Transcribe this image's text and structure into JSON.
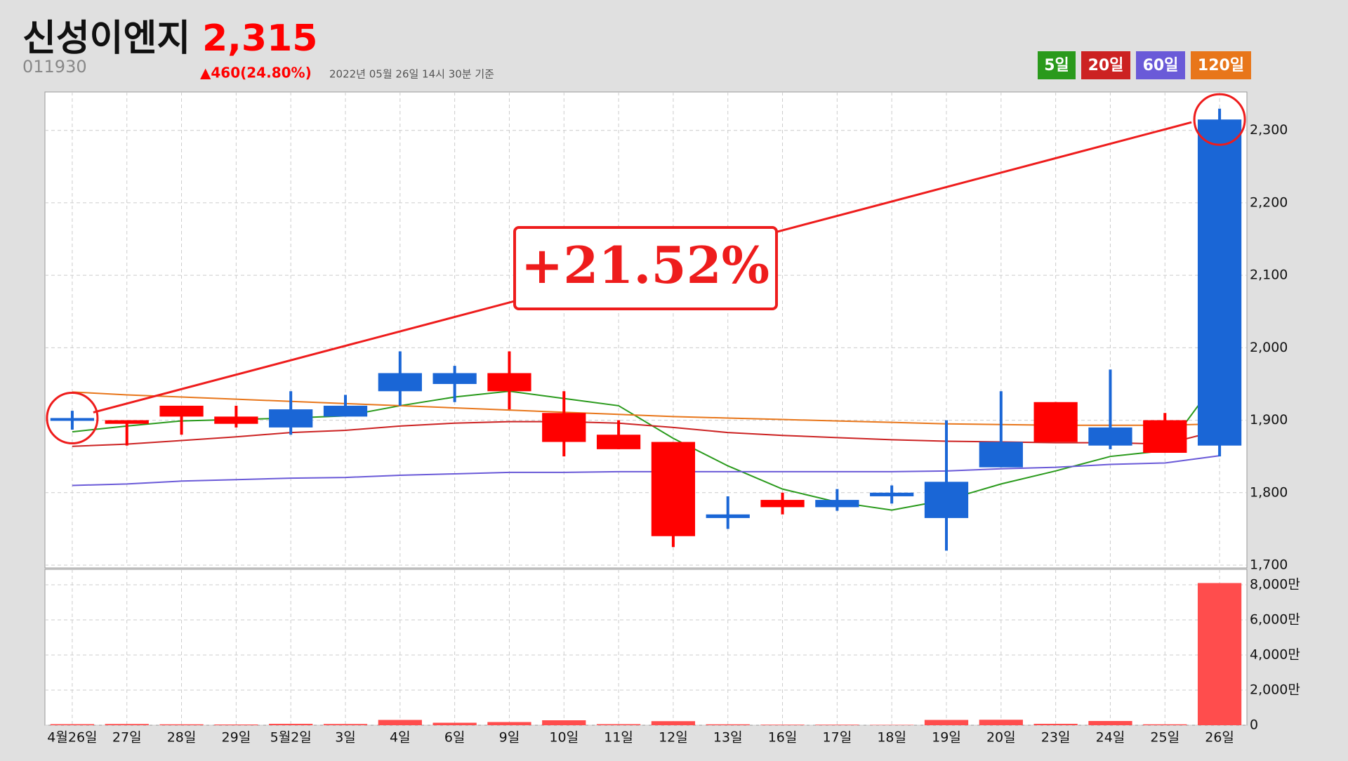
{
  "header": {
    "name": "신성이엔지",
    "price": "2,315",
    "code": "011930",
    "change": "▲460(24.80%)",
    "timestamp": "2022년 05월 26일 14시 30분 기준"
  },
  "chart_data": {
    "type": "candlestick",
    "categories": [
      "4월26일",
      "27일",
      "28일",
      "29일",
      "5월2일",
      "3일",
      "4일",
      "6일",
      "9일",
      "10일",
      "11일",
      "12일",
      "13일",
      "16일",
      "17일",
      "18일",
      "19일",
      "20일",
      "23일",
      "24일",
      "25일",
      "26일"
    ],
    "open": [
      1900,
      1900,
      1920,
      1905,
      1890,
      1905,
      1940,
      1950,
      1965,
      1910,
      1880,
      1870,
      1765,
      1790,
      1780,
      1795,
      1765,
      1835,
      1925,
      1865,
      1900,
      1865
    ],
    "high": [
      1913,
      1900,
      1920,
      1920,
      1940,
      1935,
      1995,
      1975,
      1995,
      1940,
      1900,
      1870,
      1795,
      1800,
      1805,
      1810,
      1900,
      1940,
      1925,
      1970,
      1910,
      2330
    ],
    "low": [
      1887,
      1865,
      1880,
      1890,
      1880,
      1905,
      1920,
      1925,
      1915,
      1850,
      1860,
      1725,
      1750,
      1770,
      1775,
      1785,
      1720,
      1835,
      1870,
      1860,
      1855,
      1850
    ],
    "close": [
      1903,
      1895,
      1905,
      1895,
      1915,
      1920,
      1965,
      1965,
      1940,
      1870,
      1860,
      1740,
      1770,
      1780,
      1790,
      1800,
      1815,
      1870,
      1870,
      1890,
      1855,
      2315
    ],
    "up_color": "#1a66d6",
    "down_color": "#ff0000",
    "ma_series": [
      {
        "name": "5일",
        "color": "#2a9a1c",
        "values": [
          1884,
          1892,
          1899,
          1901,
          1903,
          1906,
          1920,
          1932,
          1940,
          1930,
          1920,
          1875,
          1837,
          1805,
          1787,
          1776,
          1790,
          1812,
          1830,
          1850,
          1858,
          1960
        ]
      },
      {
        "name": "20일",
        "color": "#cc2222",
        "values": [
          1864,
          1867,
          1872,
          1877,
          1883,
          1886,
          1892,
          1896,
          1898,
          1898,
          1896,
          1890,
          1883,
          1879,
          1876,
          1873,
          1871,
          1870,
          1869,
          1869,
          1867,
          1886
        ]
      },
      {
        "name": "60일",
        "color": "#6a5ad8",
        "values": [
          1810,
          1812,
          1816,
          1818,
          1820,
          1821,
          1824,
          1826,
          1828,
          1828,
          1829,
          1829,
          1829,
          1829,
          1829,
          1829,
          1830,
          1833,
          1835,
          1839,
          1841,
          1851
        ]
      },
      {
        "name": "120일",
        "color": "#e8761a",
        "values": [
          1939,
          1935,
          1932,
          1929,
          1926,
          1923,
          1920,
          1917,
          1914,
          1911,
          1908,
          1905,
          1903,
          1901,
          1899,
          1897,
          1895,
          1894,
          1893,
          1893,
          1893,
          1895
        ]
      }
    ],
    "ylim": [
      1700,
      2353
    ],
    "yticks": [
      {
        "value": 1700,
        "label": "1,700"
      },
      {
        "value": 1800,
        "label": "1,800"
      },
      {
        "value": 1900,
        "label": "1,900"
      },
      {
        "value": 2000,
        "label": "2,000"
      },
      {
        "value": 2100,
        "label": "2,100"
      },
      {
        "value": 2200,
        "label": "2,200"
      },
      {
        "value": 2300,
        "label": "2,300"
      }
    ],
    "annotation": "+21.52%",
    "grid": true,
    "volume": {
      "type": "bar",
      "color": "#ff4d4d",
      "values": [
        60,
        70,
        50,
        40,
        80,
        70,
        300,
        140,
        180,
        280,
        60,
        230,
        50,
        30,
        30,
        20,
        300,
        310,
        80,
        240,
        50,
        8100
      ],
      "ylim": [
        0,
        8880
      ],
      "yticks": [
        0,
        {
          "value": 2000,
          "label": "2,000만"
        },
        {
          "value": 4000,
          "label": "4,000만"
        },
        {
          "value": 6000,
          "label": "6,000만"
        },
        {
          "value": 8000,
          "label": "8,000만"
        }
      ]
    }
  }
}
